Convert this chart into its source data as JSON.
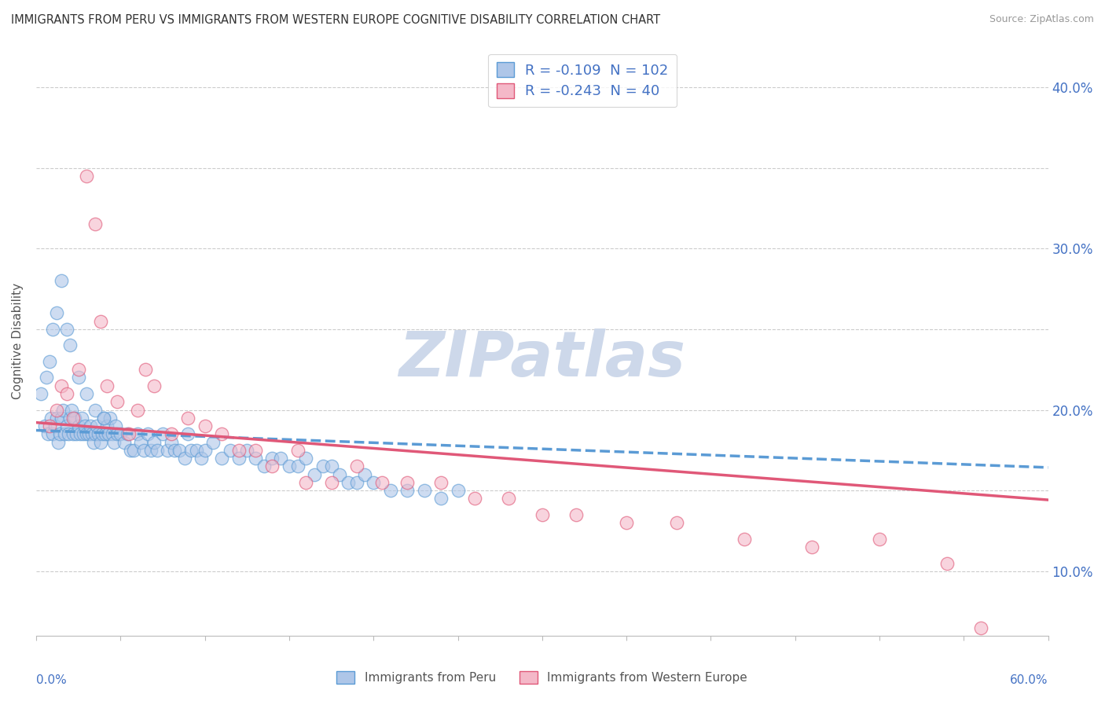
{
  "title": "IMMIGRANTS FROM PERU VS IMMIGRANTS FROM WESTERN EUROPE COGNITIVE DISABILITY CORRELATION CHART",
  "source": "Source: ZipAtlas.com",
  "ylabel": "Cognitive Disability",
  "y_ticks": [
    0.1,
    0.15,
    0.2,
    0.25,
    0.3,
    0.35,
    0.4
  ],
  "y_tick_labels_right": [
    "10.0%",
    "",
    "20.0%",
    "",
    "30.0%",
    "",
    "40.0%"
  ],
  "x_lim": [
    0.0,
    0.6
  ],
  "y_lim": [
    0.06,
    0.425
  ],
  "peru_color": "#aec6e8",
  "peru_edge_color": "#5b9bd5",
  "western_color": "#f4b8c8",
  "western_edge_color": "#e05878",
  "peru_R": -0.109,
  "peru_N": 102,
  "western_R": -0.243,
  "western_N": 40,
  "peru_trend_color": "#5b9bd5",
  "western_trend_color": "#e05878",
  "watermark_zip": "ZIP",
  "watermark_atlas": "atlas",
  "watermark_color": "#cdd8ea",
  "background_color": "#ffffff",
  "grid_color": "#cccccc",
  "peru_scatter_x": [
    0.005,
    0.007,
    0.009,
    0.01,
    0.011,
    0.012,
    0.013,
    0.014,
    0.015,
    0.016,
    0.017,
    0.018,
    0.019,
    0.02,
    0.021,
    0.022,
    0.023,
    0.024,
    0.025,
    0.026,
    0.027,
    0.028,
    0.029,
    0.03,
    0.031,
    0.032,
    0.033,
    0.034,
    0.035,
    0.036,
    0.037,
    0.038,
    0.039,
    0.04,
    0.041,
    0.042,
    0.043,
    0.044,
    0.045,
    0.046,
    0.047,
    0.048,
    0.05,
    0.052,
    0.054,
    0.056,
    0.058,
    0.06,
    0.062,
    0.064,
    0.066,
    0.068,
    0.07,
    0.072,
    0.075,
    0.078,
    0.08,
    0.082,
    0.085,
    0.088,
    0.09,
    0.092,
    0.095,
    0.098,
    0.1,
    0.105,
    0.11,
    0.115,
    0.12,
    0.125,
    0.13,
    0.135,
    0.14,
    0.145,
    0.15,
    0.155,
    0.16,
    0.165,
    0.17,
    0.175,
    0.18,
    0.185,
    0.19,
    0.195,
    0.2,
    0.21,
    0.22,
    0.23,
    0.24,
    0.25,
    0.003,
    0.006,
    0.008,
    0.01,
    0.012,
    0.015,
    0.018,
    0.02,
    0.025,
    0.03,
    0.035,
    0.04
  ],
  "peru_scatter_y": [
    0.19,
    0.185,
    0.195,
    0.185,
    0.19,
    0.195,
    0.18,
    0.185,
    0.195,
    0.2,
    0.185,
    0.19,
    0.185,
    0.195,
    0.2,
    0.185,
    0.195,
    0.185,
    0.19,
    0.185,
    0.195,
    0.185,
    0.19,
    0.185,
    0.185,
    0.19,
    0.185,
    0.18,
    0.185,
    0.19,
    0.185,
    0.18,
    0.185,
    0.195,
    0.185,
    0.19,
    0.185,
    0.195,
    0.185,
    0.18,
    0.19,
    0.185,
    0.185,
    0.18,
    0.185,
    0.175,
    0.175,
    0.185,
    0.18,
    0.175,
    0.185,
    0.175,
    0.18,
    0.175,
    0.185,
    0.175,
    0.18,
    0.175,
    0.175,
    0.17,
    0.185,
    0.175,
    0.175,
    0.17,
    0.175,
    0.18,
    0.17,
    0.175,
    0.17,
    0.175,
    0.17,
    0.165,
    0.17,
    0.17,
    0.165,
    0.165,
    0.17,
    0.16,
    0.165,
    0.165,
    0.16,
    0.155,
    0.155,
    0.16,
    0.155,
    0.15,
    0.15,
    0.15,
    0.145,
    0.15,
    0.21,
    0.22,
    0.23,
    0.25,
    0.26,
    0.28,
    0.25,
    0.24,
    0.22,
    0.21,
    0.2,
    0.195
  ],
  "western_scatter_x": [
    0.008,
    0.012,
    0.015,
    0.018,
    0.022,
    0.025,
    0.03,
    0.035,
    0.038,
    0.042,
    0.048,
    0.055,
    0.06,
    0.065,
    0.07,
    0.08,
    0.09,
    0.1,
    0.11,
    0.12,
    0.13,
    0.14,
    0.155,
    0.16,
    0.175,
    0.19,
    0.205,
    0.22,
    0.24,
    0.26,
    0.28,
    0.3,
    0.32,
    0.35,
    0.38,
    0.42,
    0.46,
    0.5,
    0.54,
    0.56
  ],
  "western_scatter_y": [
    0.19,
    0.2,
    0.215,
    0.21,
    0.195,
    0.225,
    0.345,
    0.315,
    0.255,
    0.215,
    0.205,
    0.185,
    0.2,
    0.225,
    0.215,
    0.185,
    0.195,
    0.19,
    0.185,
    0.175,
    0.175,
    0.165,
    0.175,
    0.155,
    0.155,
    0.165,
    0.155,
    0.155,
    0.155,
    0.145,
    0.145,
    0.135,
    0.135,
    0.13,
    0.13,
    0.12,
    0.115,
    0.12,
    0.105,
    0.065
  ],
  "watermark": "ZIPatlas"
}
